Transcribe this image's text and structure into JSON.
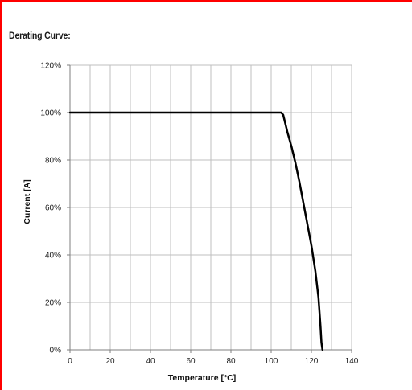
{
  "heading": "Derating Curve:",
  "frame_color": "#ff0000",
  "chart_data": {
    "type": "line",
    "title": "",
    "xlabel": "Temperature [°C]",
    "ylabel": "Current [A]",
    "xlim": [
      0,
      140
    ],
    "ylim": [
      0,
      120
    ],
    "x_ticks": [
      0,
      20,
      40,
      60,
      80,
      100,
      120,
      140
    ],
    "y_ticks": [
      0,
      20,
      40,
      60,
      80,
      100,
      120
    ],
    "x_tick_labels": [
      "0",
      "20",
      "40",
      "60",
      "80",
      "100",
      "120",
      "140"
    ],
    "y_tick_labels": [
      "0%",
      "20%",
      "40%",
      "60%",
      "80%",
      "100%",
      "120%"
    ],
    "x_minor_grid": [
      10,
      30,
      50,
      70,
      90,
      110,
      130
    ],
    "grid": true,
    "line_color": "#000000",
    "series": [
      {
        "x": [
          0,
          105,
          106,
          108,
          110,
          112,
          114,
          116,
          118,
          120,
          122,
          123.5,
          124.5,
          125,
          125.5
        ],
        "y": [
          100,
          100,
          99,
          92,
          86,
          79,
          71,
          62,
          53,
          44,
          33,
          22,
          10,
          3,
          0
        ]
      }
    ]
  }
}
